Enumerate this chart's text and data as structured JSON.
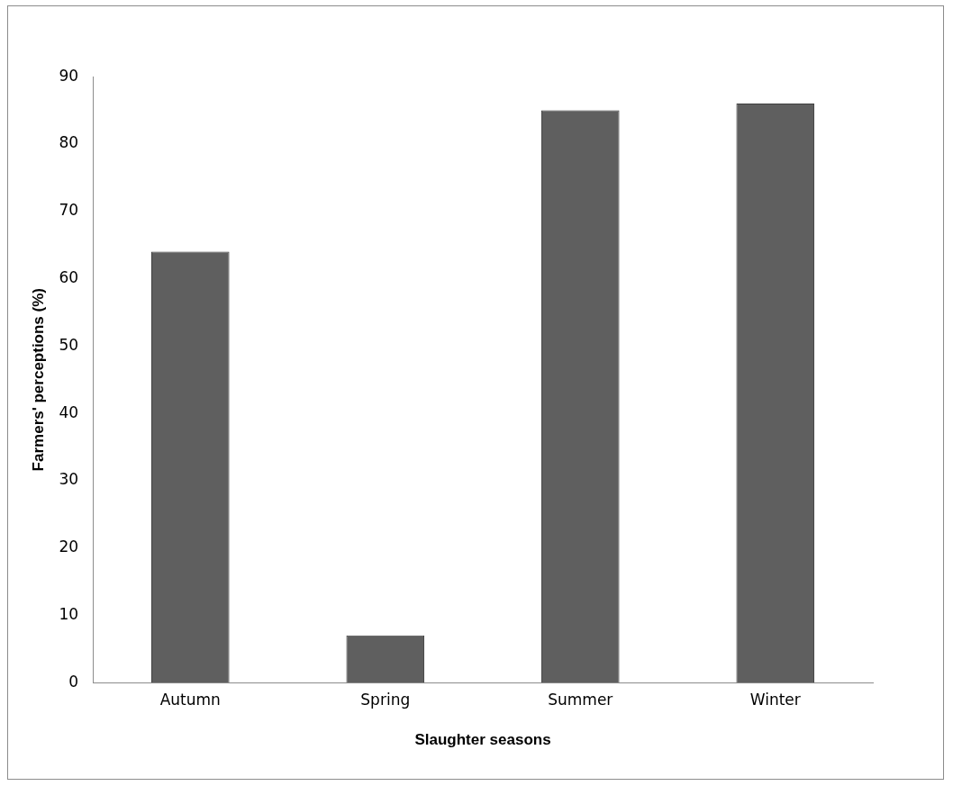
{
  "chart_data": {
    "type": "bar",
    "xlabel": "Slaughter seasons",
    "ylabel": "Farmers' perceptions (%)",
    "categories": [
      "Autumn",
      "Spring",
      "Summer",
      "Winter"
    ],
    "values": [
      64,
      7,
      85,
      86
    ],
    "color": "#5f5f5f",
    "ylim": [
      0,
      90
    ],
    "yticks": [
      0,
      10,
      20,
      30,
      40,
      50,
      60,
      70,
      80,
      90
    ],
    "grid": false,
    "legend": false
  }
}
